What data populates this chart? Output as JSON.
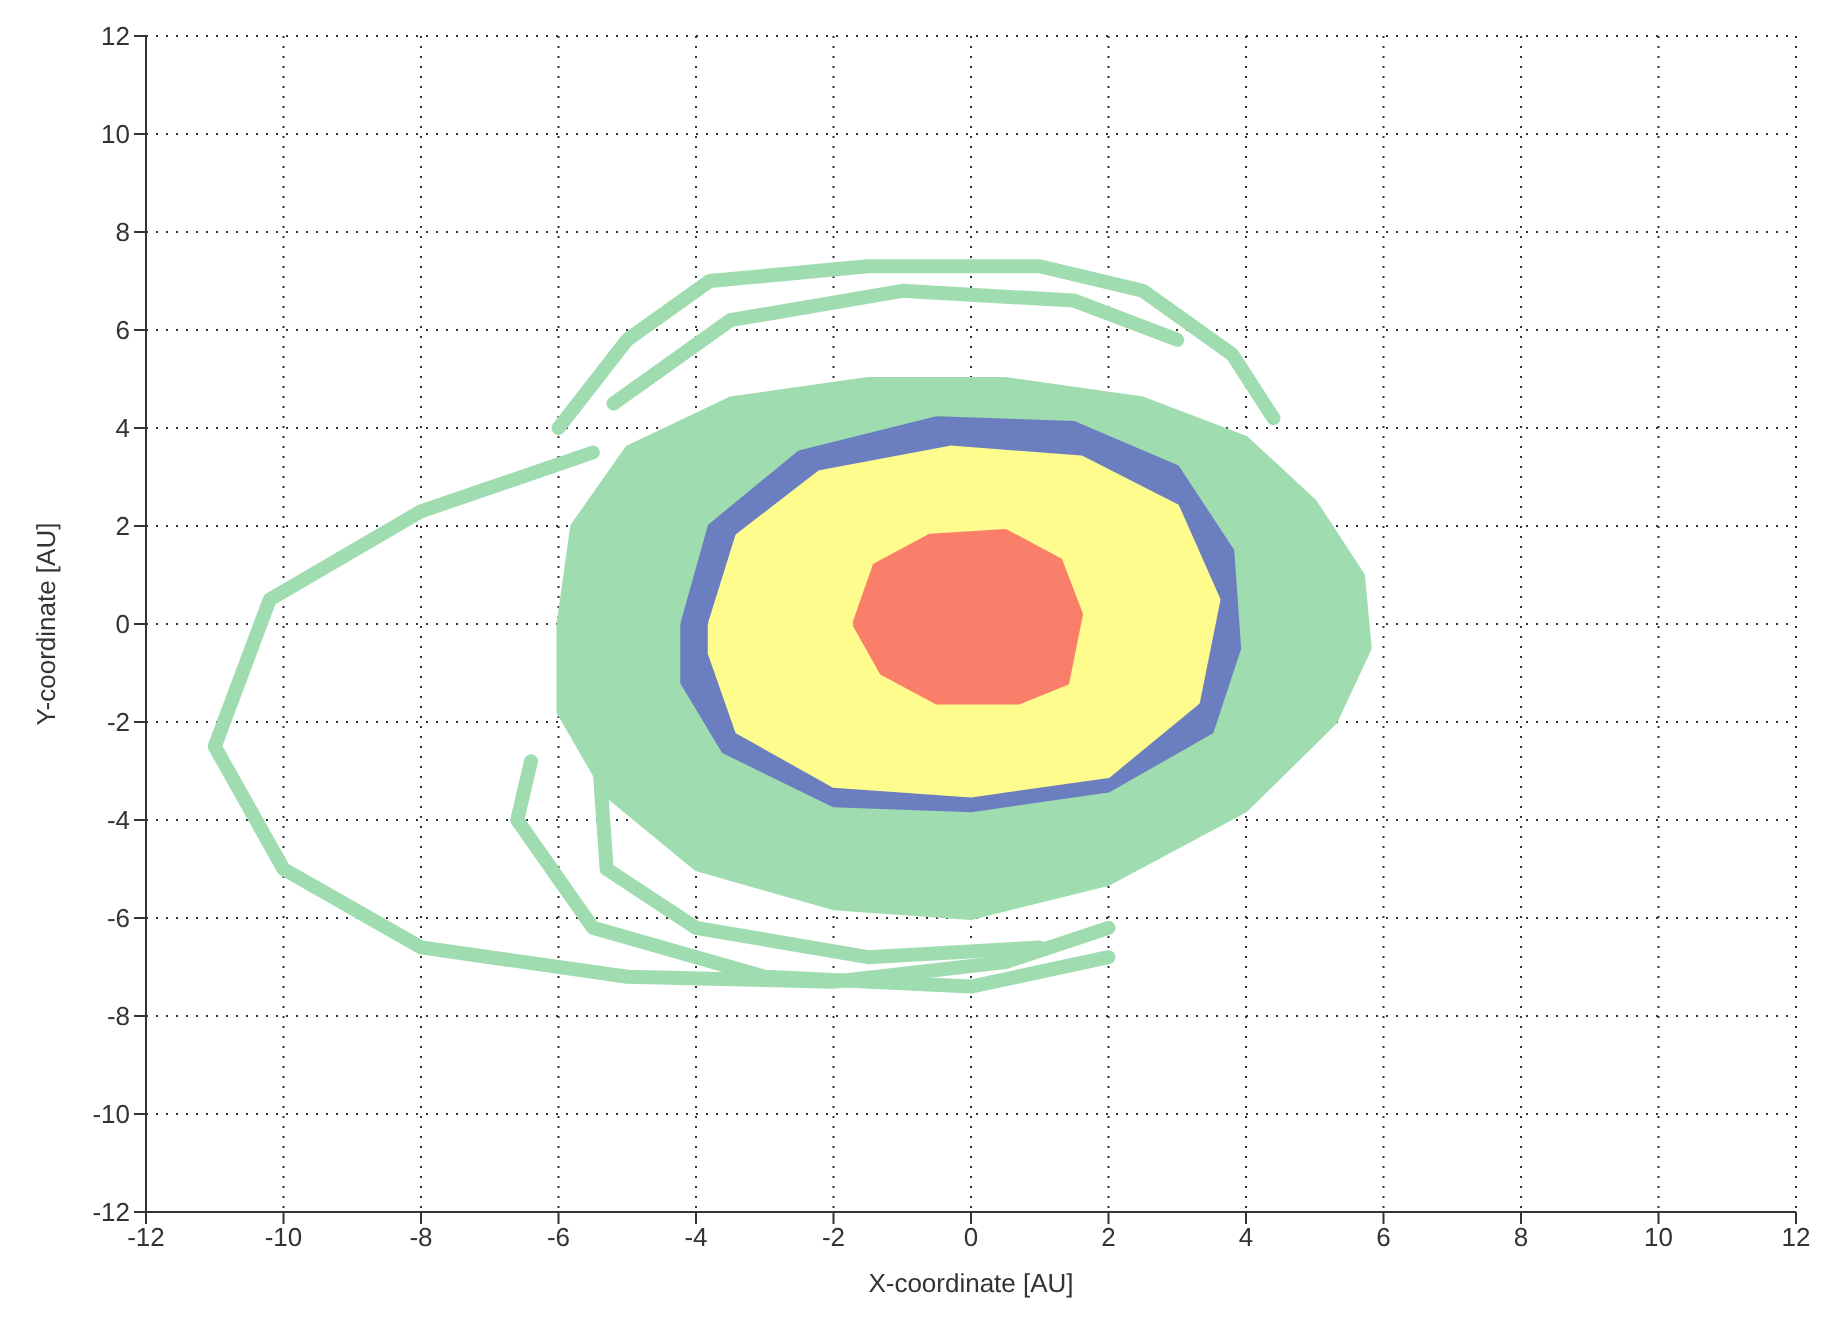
{
  "chart_data": {
    "type": "scatter",
    "xlabel": "X-coordinate [AU]",
    "ylabel": "Y-coordinate [AU]",
    "xlim": [
      -12,
      12
    ],
    "ylim": [
      -12,
      12
    ],
    "xticks": [
      -12,
      -10,
      -8,
      -6,
      -4,
      -2,
      0,
      2,
      4,
      6,
      8,
      10,
      12
    ],
    "yticks": [
      -12,
      -10,
      -8,
      -6,
      -4,
      -2,
      0,
      2,
      4,
      6,
      8,
      10,
      12
    ],
    "grid": true,
    "legend": false,
    "marker": "none",
    "line_style": "solid",
    "series": [
      {
        "type": "area",
        "color": "#9fdcb0",
        "x": [
          -6,
          -5.8,
          -5,
          -3.5,
          -1.5,
          0.5,
          2.5,
          4,
          5,
          5.7,
          5.8,
          5.3,
          4,
          2,
          0,
          -2,
          -4,
          -5.3,
          -6,
          -6
        ],
        "values": [
          0,
          2,
          3.6,
          4.6,
          5,
          5,
          4.6,
          3.8,
          2.5,
          1,
          -0.5,
          -2,
          -3.8,
          -5.3,
          -6,
          -5.8,
          -5,
          -3.5,
          -1.8,
          0
        ]
      },
      {
        "type": "line",
        "color": "#9fdcb0",
        "x": [
          -6,
          -5,
          -3.8,
          -1.5,
          1,
          2.5,
          3.8,
          4.4
        ],
        "values": [
          4,
          5.8,
          7,
          7.3,
          7.3,
          6.8,
          5.5,
          4.2
        ]
      },
      {
        "type": "line",
        "color": "#9fdcb0",
        "x": [
          -5.2,
          -3.5,
          -1,
          1.5,
          3
        ],
        "values": [
          4.5,
          6.2,
          6.8,
          6.6,
          5.8
        ]
      },
      {
        "type": "line",
        "color": "#9fdcb0",
        "x": [
          -5.5,
          -8,
          -10.2,
          -11,
          -10,
          -8,
          -5,
          -2,
          0.5,
          2
        ],
        "values": [
          3.5,
          2.3,
          0.5,
          -2.5,
          -5,
          -6.6,
          -7.2,
          -7.3,
          -6.9,
          -6.2
        ]
      },
      {
        "type": "line",
        "color": "#9fdcb0",
        "x": [
          -6.4,
          -6.6,
          -5.5,
          -3,
          0,
          2
        ],
        "values": [
          -2.8,
          -4,
          -6.2,
          -7.2,
          -7.4,
          -6.8
        ]
      },
      {
        "type": "line",
        "color": "#9fdcb0",
        "x": [
          -5.4,
          -5.3,
          -4,
          -1.5,
          1
        ],
        "values": [
          -3,
          -5,
          -6.2,
          -6.8,
          -6.6
        ]
      },
      {
        "type": "area",
        "color": "#6b7fc0",
        "x": [
          -4.2,
          -3.8,
          -2.5,
          -0.5,
          1.5,
          3,
          3.8,
          3.9,
          3.5,
          2,
          0,
          -2,
          -3.6,
          -4.2,
          -4.2
        ],
        "values": [
          0,
          2,
          3.5,
          4.2,
          4.1,
          3.2,
          1.5,
          -0.5,
          -2.2,
          -3.4,
          -3.8,
          -3.7,
          -2.6,
          -1.2,
          0
        ]
      },
      {
        "type": "area",
        "color": "#fdfc8c",
        "x": [
          -3.8,
          -3.4,
          -2.2,
          -0.3,
          1.6,
          3,
          3.6,
          3.3,
          2,
          0,
          -2,
          -3.4,
          -3.8,
          -3.8
        ],
        "values": [
          0,
          1.8,
          3.1,
          3.6,
          3.4,
          2.4,
          0.5,
          -1.6,
          -3.1,
          -3.5,
          -3.3,
          -2.2,
          -0.6,
          0
        ]
      },
      {
        "type": "area",
        "color": "#fa7f6a",
        "x": [
          -1.7,
          -1.4,
          -0.6,
          0.5,
          1.3,
          1.6,
          1.4,
          0.7,
          -0.5,
          -1.3,
          -1.7
        ],
        "values": [
          0,
          1.2,
          1.8,
          1.9,
          1.3,
          0.2,
          -1.2,
          -1.6,
          -1.6,
          -1,
          0
        ]
      }
    ]
  }
}
